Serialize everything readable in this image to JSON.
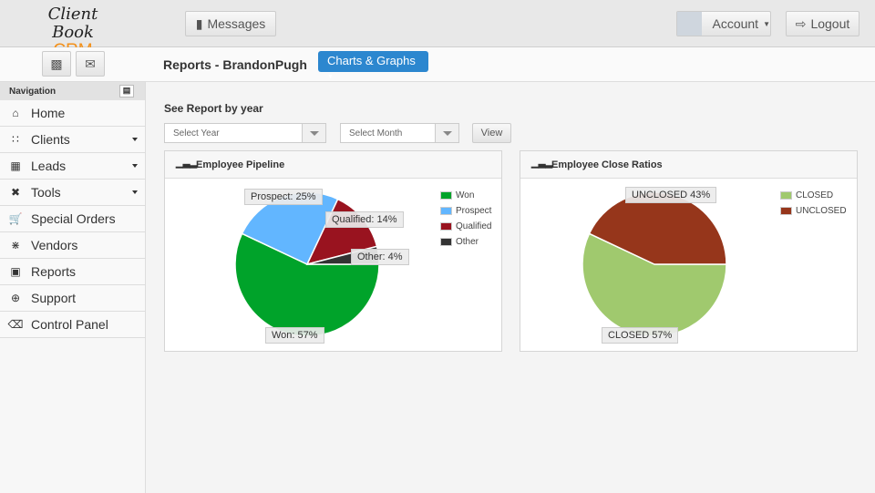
{
  "header": {
    "logo_line1": "Client Book",
    "logo_line2": "CRM",
    "messages": "Messages",
    "account": "Account",
    "logout": "Logout"
  },
  "page": {
    "title": "Reports - BrandonPugh",
    "charts_button": "Charts & Graphs"
  },
  "sidebar": {
    "heading": "Navigation",
    "items": [
      {
        "label": "Home",
        "icon": "home-icon",
        "dropdown": false
      },
      {
        "label": "Clients",
        "icon": "grid-icon",
        "dropdown": true
      },
      {
        "label": "Leads",
        "icon": "table-icon",
        "dropdown": true
      },
      {
        "label": "Tools",
        "icon": "tools-icon",
        "dropdown": true
      },
      {
        "label": "Special Orders",
        "icon": "cart-icon",
        "dropdown": false
      },
      {
        "label": "Vendors",
        "icon": "users-icon",
        "dropdown": false
      },
      {
        "label": "Reports",
        "icon": "chart-icon",
        "dropdown": false
      },
      {
        "label": "Support",
        "icon": "lifebuoy-icon",
        "dropdown": false
      },
      {
        "label": "Control Panel",
        "icon": "backspace-icon",
        "dropdown": false
      }
    ]
  },
  "filters": {
    "heading": "See Report by year",
    "year_placeholder": "Select Year",
    "month_placeholder": "Select Month",
    "view": "View"
  },
  "chart_data": [
    {
      "type": "pie",
      "title": "Employee Pipeline",
      "legend": "top-right",
      "labels": [
        "Won",
        "Prospect",
        "Qualified",
        "Other"
      ],
      "values": [
        57,
        25,
        14,
        4
      ],
      "colors": [
        "#00a32a",
        "#62b6ff",
        "#99131f",
        "#333333"
      ],
      "data_labels": [
        "Won: 57%",
        "Prospect: 25%",
        "Qualified: 14%",
        "Other: 4%"
      ]
    },
    {
      "type": "pie",
      "title": "Employee Close Ratios",
      "legend": "top-right",
      "labels": [
        "CLOSED",
        "UNCLOSED"
      ],
      "values": [
        57,
        43
      ],
      "colors": [
        "#a0c96e",
        "#96361b"
      ],
      "data_labels": [
        "CLOSED 57%",
        "UNCLOSED 43%"
      ]
    }
  ]
}
